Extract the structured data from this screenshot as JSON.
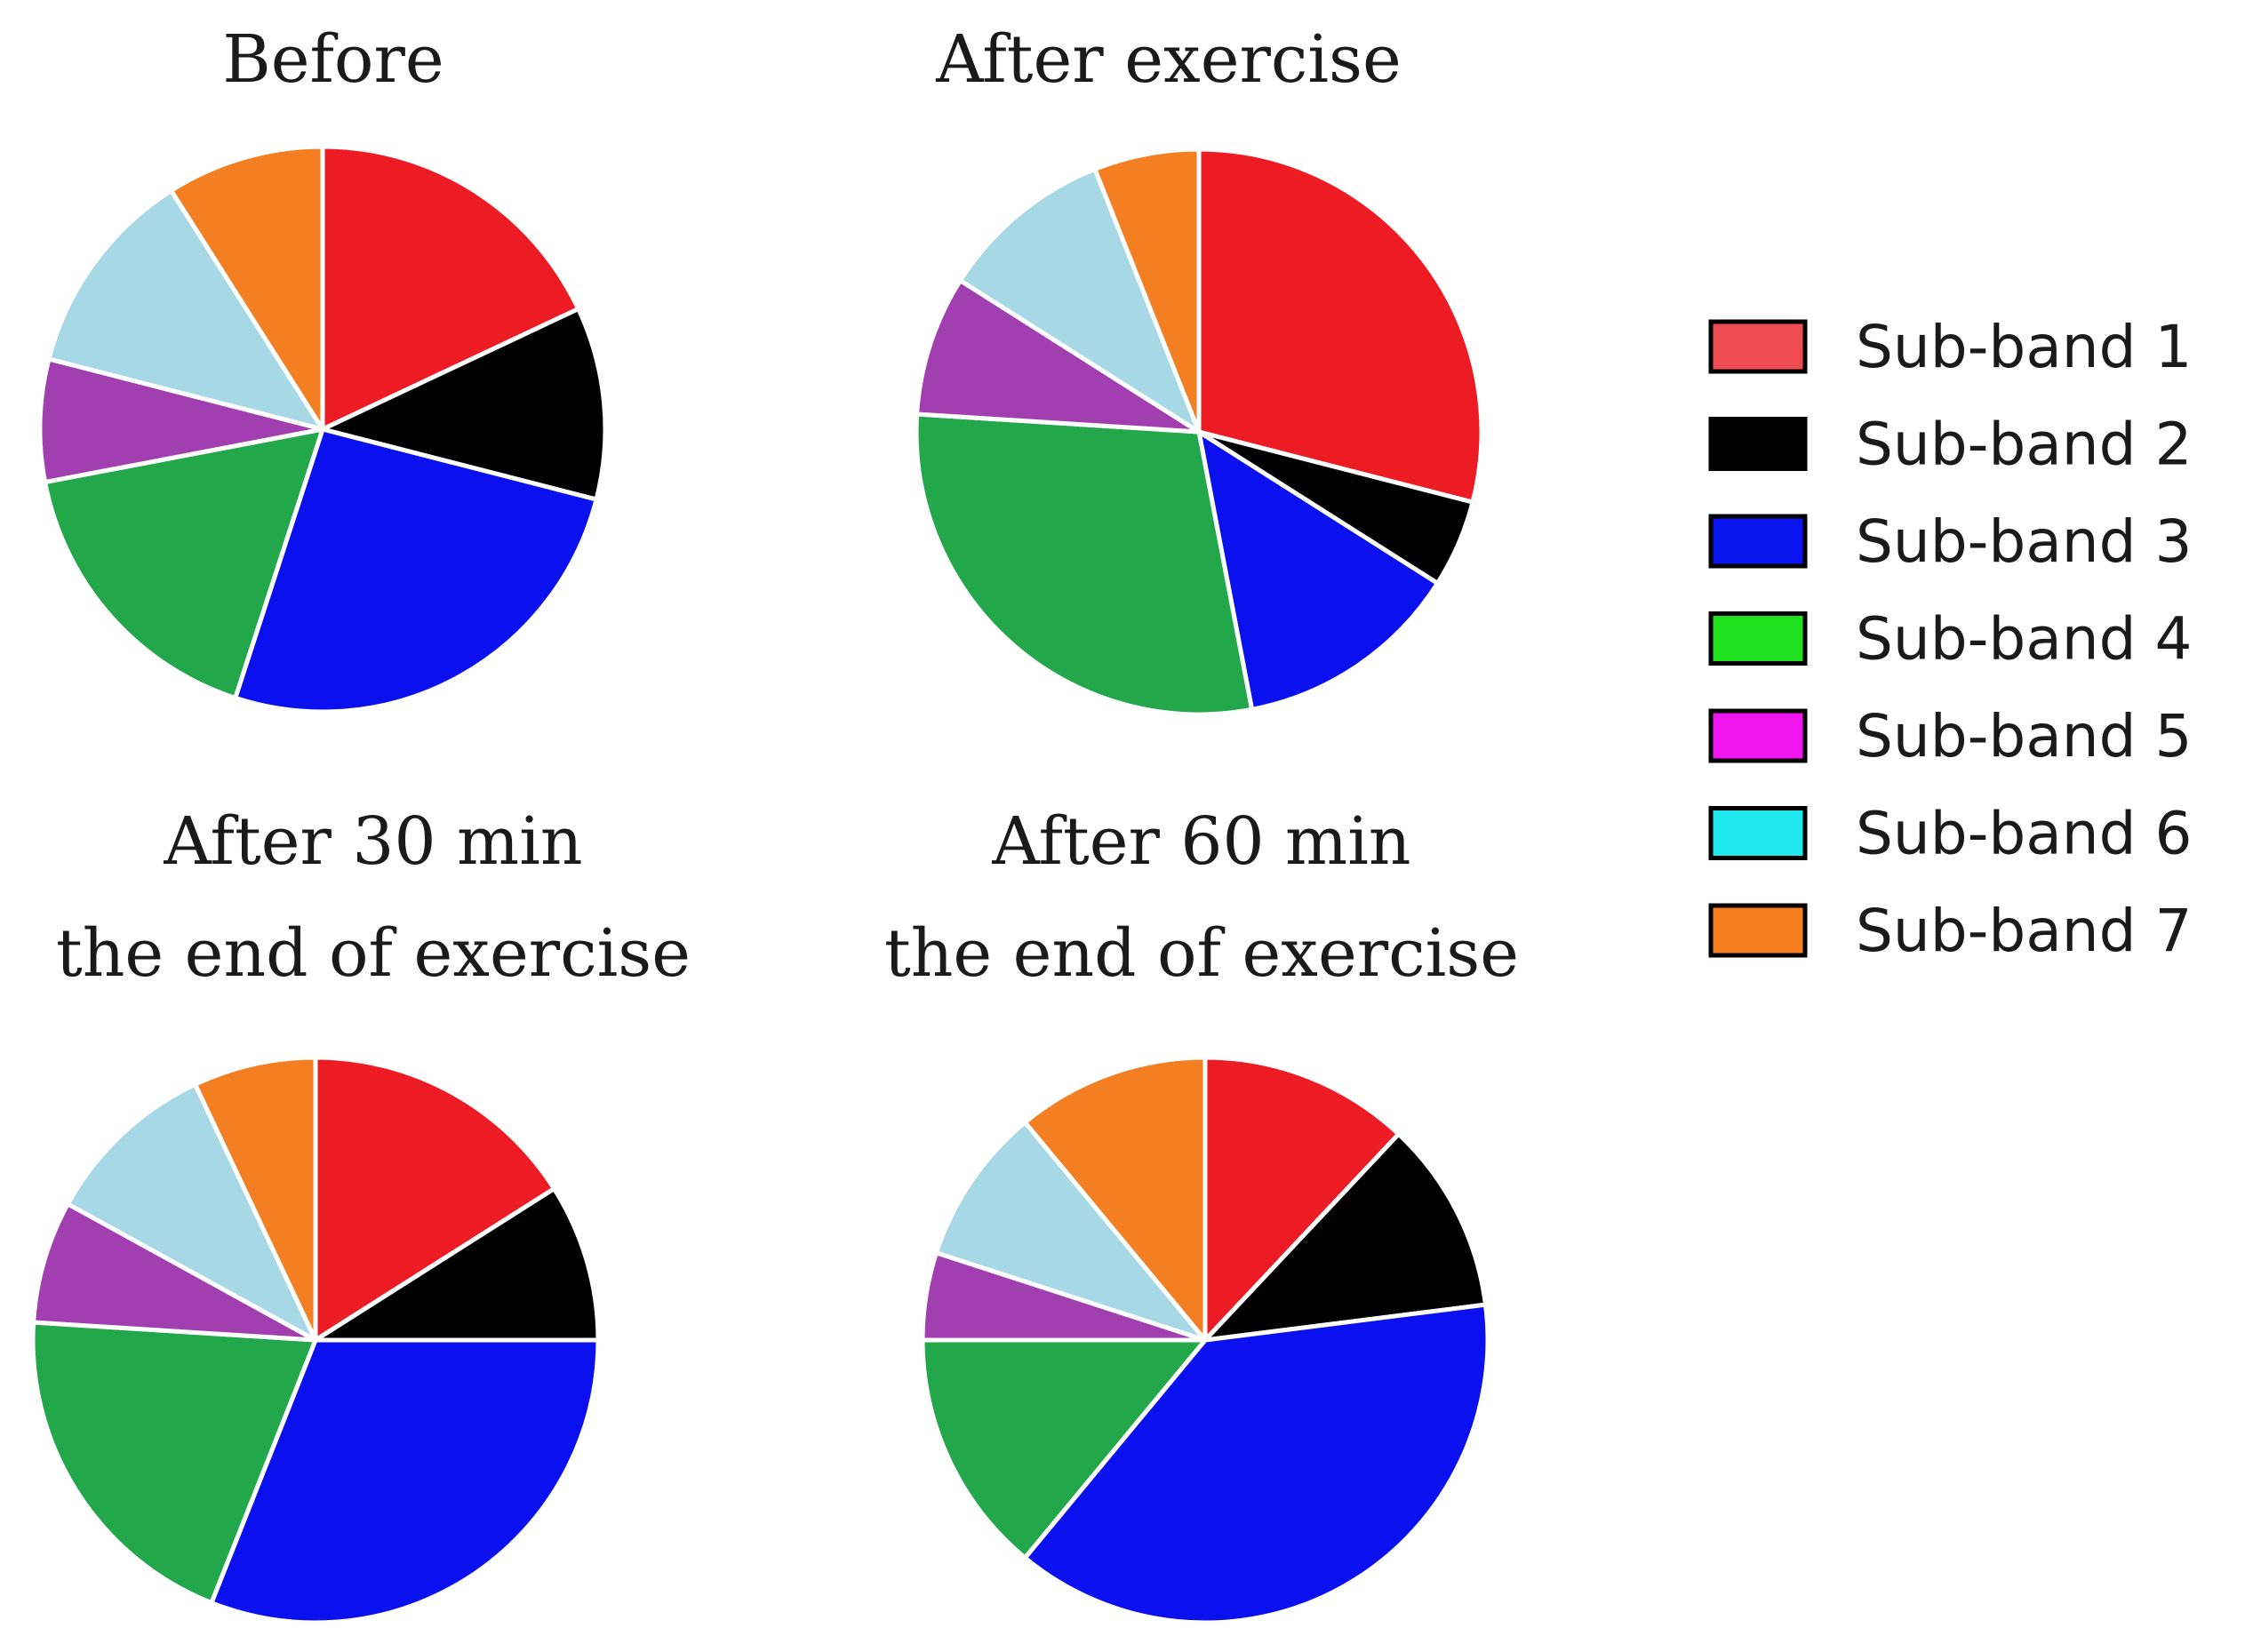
{
  "chart_data": [
    {
      "type": "pie",
      "title_lines": [
        "Before"
      ],
      "categories": [
        "Sub-band 1",
        "Sub-band 2",
        "Sub-band 3",
        "Sub-band 4",
        "Sub-band 5",
        "Sub-band 6",
        "Sub-band 7"
      ],
      "values": [
        18,
        11,
        26,
        17,
        7,
        12,
        9
      ]
    },
    {
      "type": "pie",
      "title_lines": [
        "After exercise"
      ],
      "categories": [
        "Sub-band 1",
        "Sub-band 2",
        "Sub-band 3",
        "Sub-band 4",
        "Sub-band 5",
        "Sub-band 6",
        "Sub-band 7"
      ],
      "values": [
        29,
        5,
        13,
        29,
        8,
        10,
        6
      ]
    },
    {
      "type": "pie",
      "title_lines": [
        "After 30 min",
        "the end of exercise"
      ],
      "categories": [
        "Sub-band 1",
        "Sub-band 2",
        "Sub-band 3",
        "Sub-band 4",
        "Sub-band 5",
        "Sub-band 6",
        "Sub-band 7"
      ],
      "values": [
        16,
        9,
        31,
        20,
        7,
        10,
        7
      ]
    },
    {
      "type": "pie",
      "title_lines": [
        "After 60 min",
        "the end of exercise"
      ],
      "categories": [
        "Sub-band 1",
        "Sub-band 2",
        "Sub-band 3",
        "Sub-band 4",
        "Sub-band 5",
        "Sub-band 6",
        "Sub-band 7"
      ],
      "values": [
        12,
        11,
        38,
        14,
        5,
        9,
        11
      ]
    }
  ],
  "legend": {
    "items": [
      {
        "label": "Sub-band 1",
        "swatch_color": "#ee4b52"
      },
      {
        "label": "Sub-band 2",
        "swatch_color": "#000000"
      },
      {
        "label": "Sub-band 3",
        "swatch_color": "#0a14ee"
      },
      {
        "label": "Sub-band 4",
        "swatch_color": "#1fe01f"
      },
      {
        "label": "Sub-band 5",
        "swatch_color": "#ee15ee"
      },
      {
        "label": "Sub-band 6",
        "swatch_color": "#1fe8ec"
      },
      {
        "label": "Sub-band 7",
        "swatch_color": "#f57e1f"
      }
    ]
  },
  "slice_colors": [
    "#ed1c24",
    "#000000",
    "#0a10ee",
    "#22a84a",
    "#a23fb0",
    "#a6d8e6",
    "#f47f22"
  ]
}
